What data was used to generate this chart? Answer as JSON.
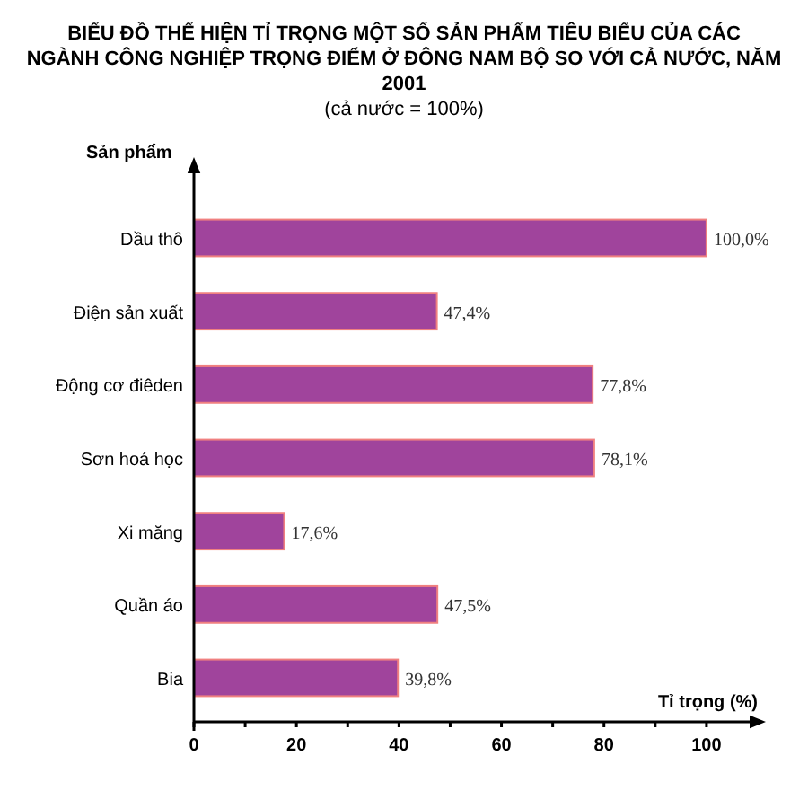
{
  "chart_data": {
    "type": "bar",
    "orientation": "horizontal",
    "title": "BIỂU ĐỒ THỂ HIỆN TỈ TRỌNG MỘT SỐ SẢN PHẨM TIÊU BIỂU CỦA CÁC NGÀNH CÔNG NGHIỆP TRỌNG ĐIỂM Ở ĐÔNG NAM BỘ SO VỚI CẢ NƯỚC, NĂM 2001",
    "subtitle": "(cả nước = 100%)",
    "ylabel": "Sản phẩm",
    "xlabel": "Tỉ trọng (%)",
    "categories": [
      "Dầu thô",
      "Điện sản xuất",
      "Động cơ điêden",
      "Sơn hoá học",
      "Xi măng",
      "Quần áo",
      "Bia"
    ],
    "values": [
      100.0,
      47.4,
      77.8,
      78.1,
      17.6,
      47.5,
      39.8
    ],
    "value_labels": [
      "100,0%",
      "47,4%",
      "77,8%",
      "78,1%",
      "17,6%",
      "47,5%",
      "39,8%"
    ],
    "color": "#a0449c",
    "xlim": [
      0,
      110
    ],
    "xticks": [
      0,
      {
        "value": 10,
        "label": null
      },
      20,
      {
        "value": 30,
        "label": null
      },
      40,
      {
        "value": 50,
        "label": null
      },
      60,
      {
        "value": 70,
        "label": null
      },
      80,
      {
        "value": 90,
        "label": null
      },
      100
    ],
    "grid": false
  }
}
